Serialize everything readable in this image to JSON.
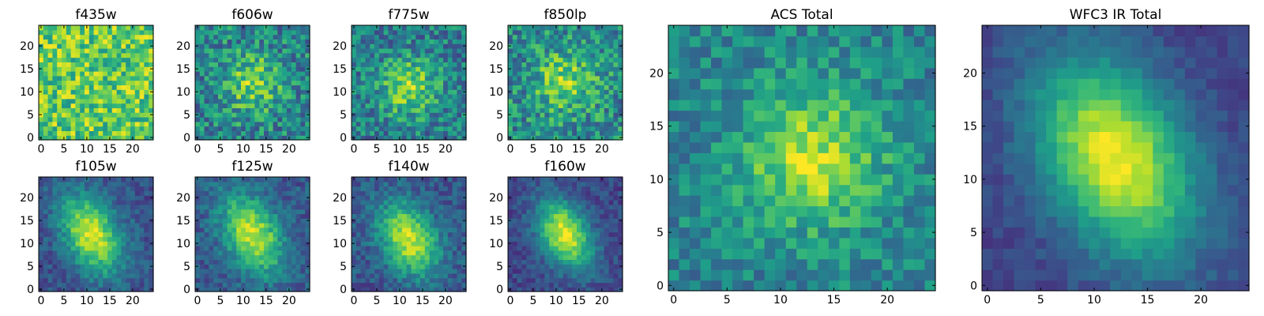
{
  "figure": {
    "background": "#ffffff",
    "frame_color": "#000000"
  },
  "chart_data": [
    {
      "type": "heatmap",
      "title": "f435w",
      "xticks": [
        0,
        5,
        10,
        15,
        20
      ],
      "yticks": [
        0,
        5,
        10,
        15,
        20
      ],
      "xlim": [
        0,
        24
      ],
      "ylim": [
        0,
        24
      ],
      "grid": false,
      "colormap": "viridis",
      "image": {
        "size": 25,
        "peak": [
          12,
          12
        ],
        "sigma": [
          6,
          6
        ],
        "signal": 0.0,
        "background": 0.75,
        "noise": 0.24,
        "seed": 11,
        "rotation": 0
      }
    },
    {
      "type": "heatmap",
      "title": "f606w",
      "xticks": [
        0,
        5,
        10,
        15,
        20
      ],
      "yticks": [
        0,
        5,
        10,
        15,
        20
      ],
      "xlim": [
        0,
        24
      ],
      "ylim": [
        0,
        24
      ],
      "grid": false,
      "colormap": "viridis",
      "image": {
        "size": 25,
        "peak": [
          12,
          12
        ],
        "sigma": [
          4.5,
          4.5
        ],
        "signal": 0.35,
        "background": 0.45,
        "noise": 0.24,
        "seed": 23,
        "rotation": 0
      }
    },
    {
      "type": "heatmap",
      "title": "f775w",
      "xticks": [
        0,
        5,
        10,
        15,
        20
      ],
      "yticks": [
        0,
        5,
        10,
        15,
        20
      ],
      "xlim": [
        0,
        24
      ],
      "ylim": [
        0,
        24
      ],
      "grid": false,
      "colormap": "viridis",
      "image": {
        "size": 25,
        "peak": [
          12,
          11
        ],
        "sigma": [
          4.5,
          4.5
        ],
        "signal": 0.4,
        "background": 0.42,
        "noise": 0.22,
        "seed": 37,
        "rotation": 0
      }
    },
    {
      "type": "heatmap",
      "title": "f850lp",
      "xticks": [
        0,
        5,
        10,
        15,
        20
      ],
      "yticks": [
        0,
        5,
        10,
        15,
        20
      ],
      "xlim": [
        0,
        24
      ],
      "ylim": [
        0,
        24
      ],
      "grid": false,
      "colormap": "viridis",
      "image": {
        "size": 25,
        "peak": [
          12,
          12
        ],
        "sigma": [
          4.5,
          4.5
        ],
        "signal": 0.35,
        "background": 0.48,
        "noise": 0.24,
        "seed": 51,
        "rotation": 0
      }
    },
    {
      "type": "heatmap",
      "title": "ACS Total",
      "xticks": [
        0,
        5,
        10,
        15,
        20
      ],
      "yticks": [
        0,
        5,
        10,
        15,
        20
      ],
      "xlim": [
        0,
        24
      ],
      "ylim": [
        0,
        24
      ],
      "grid": false,
      "colormap": "viridis",
      "image": {
        "size": 25,
        "peak": [
          13,
          12
        ],
        "sigma": [
          4.5,
          4.5
        ],
        "signal": 0.45,
        "background": 0.45,
        "noise": 0.16,
        "seed": 67,
        "rotation": 0
      }
    },
    {
      "type": "heatmap",
      "title": "f105w",
      "xticks": [
        0,
        5,
        10,
        15,
        20
      ],
      "yticks": [
        0,
        5,
        10,
        15,
        20
      ],
      "xlim": [
        0,
        24
      ],
      "ylim": [
        0,
        24
      ],
      "grid": false,
      "colormap": "viridis",
      "image": {
        "size": 25,
        "peak": [
          11,
          12
        ],
        "sigma": [
          4,
          6.5
        ],
        "signal": 0.7,
        "background": 0.25,
        "noise": 0.11,
        "seed": 79,
        "rotation": 0.5
      }
    },
    {
      "type": "heatmap",
      "title": "f125w",
      "xticks": [
        0,
        5,
        10,
        15,
        20
      ],
      "yticks": [
        0,
        5,
        10,
        15,
        20
      ],
      "xlim": [
        0,
        24
      ],
      "ylim": [
        0,
        24
      ],
      "grid": false,
      "colormap": "viridis",
      "image": {
        "size": 25,
        "peak": [
          12,
          12
        ],
        "sigma": [
          4,
          6.5
        ],
        "signal": 0.65,
        "background": 0.28,
        "noise": 0.12,
        "seed": 83,
        "rotation": 0.5
      }
    },
    {
      "type": "heatmap",
      "title": "f140w",
      "xticks": [
        0,
        5,
        10,
        15,
        20
      ],
      "yticks": [
        0,
        5,
        10,
        15,
        20
      ],
      "xlim": [
        0,
        24
      ],
      "ylim": [
        0,
        24
      ],
      "grid": false,
      "colormap": "viridis",
      "image": {
        "size": 25,
        "peak": [
          12,
          11
        ],
        "sigma": [
          4,
          6
        ],
        "signal": 0.65,
        "background": 0.27,
        "noise": 0.12,
        "seed": 97,
        "rotation": 0.5
      }
    },
    {
      "type": "heatmap",
      "title": "f160w",
      "xticks": [
        0,
        5,
        10,
        15,
        20
      ],
      "yticks": [
        0,
        5,
        10,
        15,
        20
      ],
      "xlim": [
        0,
        24
      ],
      "ylim": [
        0,
        24
      ],
      "grid": false,
      "colormap": "viridis",
      "image": {
        "size": 25,
        "peak": [
          12,
          12
        ],
        "sigma": [
          3.5,
          5.5
        ],
        "signal": 0.75,
        "background": 0.22,
        "noise": 0.1,
        "seed": 101,
        "rotation": 0.5
      }
    },
    {
      "type": "heatmap",
      "title": "WFC3 IR Total",
      "xticks": [
        0,
        5,
        10,
        15,
        20
      ],
      "yticks": [
        0,
        5,
        10,
        15,
        20
      ],
      "xlim": [
        0,
        24
      ],
      "ylim": [
        0,
        24
      ],
      "grid": false,
      "colormap": "viridis",
      "image": {
        "size": 25,
        "peak": [
          12,
          12
        ],
        "sigma": [
          4.5,
          7
        ],
        "signal": 0.78,
        "background": 0.2,
        "noise": 0.06,
        "seed": 113,
        "rotation": 0.5
      }
    }
  ]
}
